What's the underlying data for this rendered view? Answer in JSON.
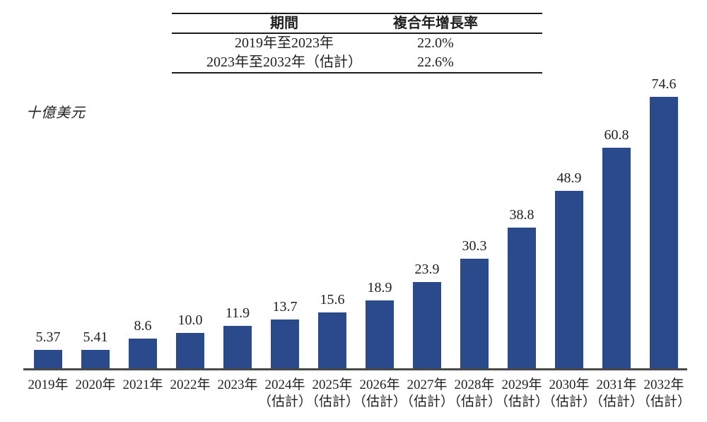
{
  "table": {
    "headers": [
      "期間",
      "複合年增長率"
    ],
    "rows": [
      {
        "period": "2019年至2023年",
        "cagr": "22.0%"
      },
      {
        "period": "2023年至2032年（估計）",
        "cagr": "22.6%"
      }
    ]
  },
  "chart_data": {
    "type": "bar",
    "title": "",
    "xlabel": "",
    "ylabel": "十億美元",
    "ylim": [
      0,
      76
    ],
    "grid": false,
    "legend_position": "none",
    "bar_color": "#2a4a8b",
    "axis_color": "#484848",
    "categories": [
      "2019年",
      "2020年",
      "2021年",
      "2022年",
      "2023年",
      "2024年",
      "2025年",
      "2026年",
      "2027年",
      "2028年",
      "2029年",
      "2030年",
      "2031年",
      "2032年"
    ],
    "sublabels": [
      "",
      "",
      "",
      "",
      "",
      "（估計）",
      "（估計）",
      "（估計）",
      "（估計）",
      "（估計）",
      "（估計）",
      "（估計）",
      "（估計）",
      "（估計）"
    ],
    "values": [
      5.37,
      5.41,
      8.6,
      10.0,
      11.9,
      13.7,
      15.6,
      18.9,
      23.9,
      30.3,
      38.8,
      48.9,
      60.8,
      74.6
    ],
    "value_labels": [
      "5.37",
      "5.41",
      "8.6",
      "10.0",
      "11.9",
      "13.7",
      "15.6",
      "18.9",
      "23.9",
      "30.3",
      "38.8",
      "48.9",
      "60.8",
      "74.6"
    ]
  }
}
